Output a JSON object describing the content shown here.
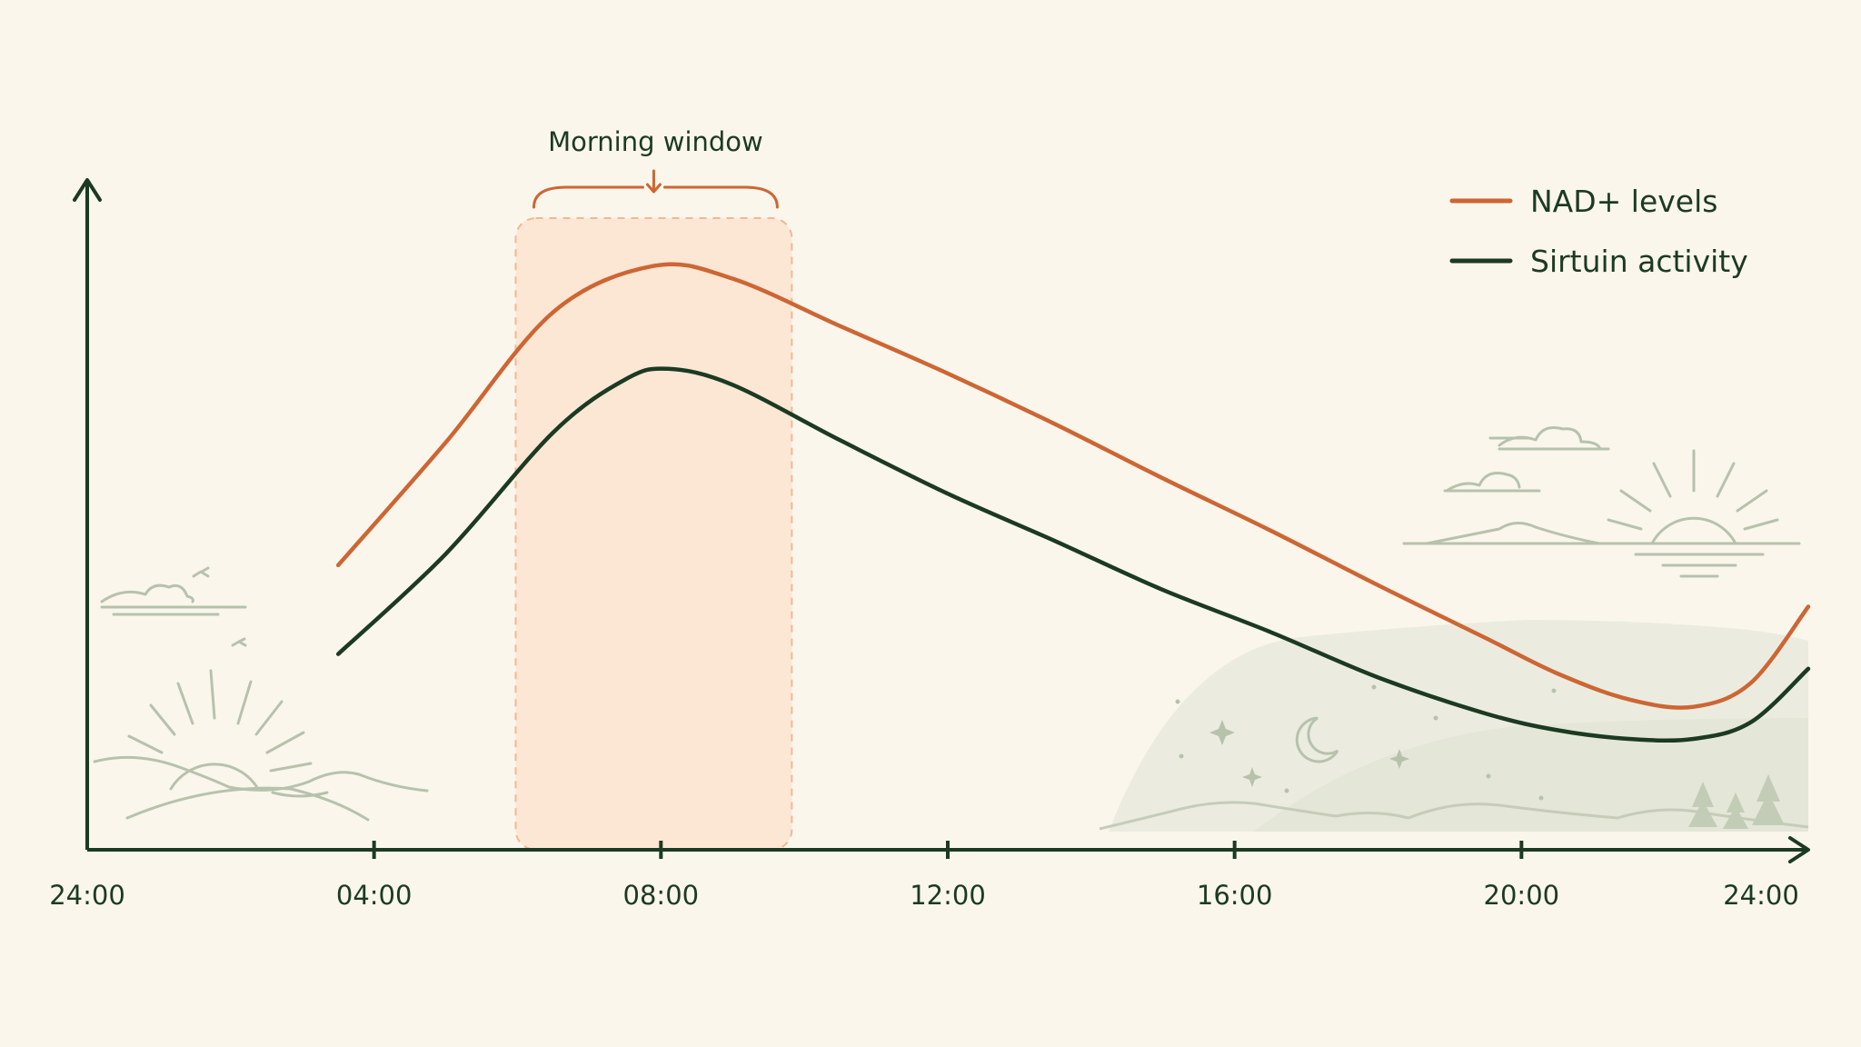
{
  "colors": {
    "background": "#faf6ec",
    "axis": "#1c3a22",
    "nad": "#cd6634",
    "sirtuin": "#1c3a22",
    "window_fill": "#fde7d3",
    "window_stroke": "#f0b58f",
    "decoration": "#b7c2ac"
  },
  "chart_data": {
    "type": "line",
    "x_unit": "hour of day",
    "xlim": [
      0,
      24
    ],
    "ylim": [
      0,
      100
    ],
    "ticks": [
      {
        "x": 0,
        "label": "24:00"
      },
      {
        "x": 4,
        "label": "04:00"
      },
      {
        "x": 8,
        "label": "08:00"
      },
      {
        "x": 12,
        "label": "12:00"
      },
      {
        "x": 16,
        "label": "16:00"
      },
      {
        "x": 20,
        "label": "20:00"
      },
      {
        "x": 24,
        "label": "24:00"
      }
    ],
    "series": [
      {
        "name": "NAD+ levels",
        "color": "#cd6634",
        "points": [
          [
            3.5,
            42.6
          ],
          [
            5,
            61
          ],
          [
            6.5,
            80.5
          ],
          [
            7.9,
            87.4
          ],
          [
            9,
            85.5
          ],
          [
            10.5,
            78.4
          ],
          [
            12,
            71.3
          ],
          [
            13.5,
            63.7
          ],
          [
            15,
            55.6
          ],
          [
            16.5,
            47.8
          ],
          [
            18,
            39.6
          ],
          [
            19.5,
            31.7
          ],
          [
            20.5,
            26.4
          ],
          [
            21.5,
            22.5
          ],
          [
            22.4,
            21.4
          ],
          [
            23.2,
            25
          ],
          [
            24,
            36.4
          ]
        ]
      },
      {
        "name": "Sirtuin activity",
        "color": "#1c3a22",
        "points": [
          [
            3.5,
            29.3
          ],
          [
            5,
            44.3
          ],
          [
            6.5,
            62.5
          ],
          [
            7.5,
            70.4
          ],
          [
            8.1,
            72
          ],
          [
            9,
            69.6
          ],
          [
            10.5,
            61.3
          ],
          [
            12,
            53.3
          ],
          [
            13.5,
            46.2
          ],
          [
            15,
            38.9
          ],
          [
            16.5,
            32.6
          ],
          [
            18,
            25.8
          ],
          [
            19.5,
            20.4
          ],
          [
            20.5,
            17.9
          ],
          [
            21.5,
            16.6
          ],
          [
            22.4,
            16.6
          ],
          [
            23.2,
            19.1
          ],
          [
            24,
            27.1
          ]
        ]
      }
    ],
    "annotations": [
      {
        "label": "Morning window",
        "x_range": [
          6,
          9.8
        ]
      }
    ],
    "legend_position": "top-right",
    "grid": false
  }
}
